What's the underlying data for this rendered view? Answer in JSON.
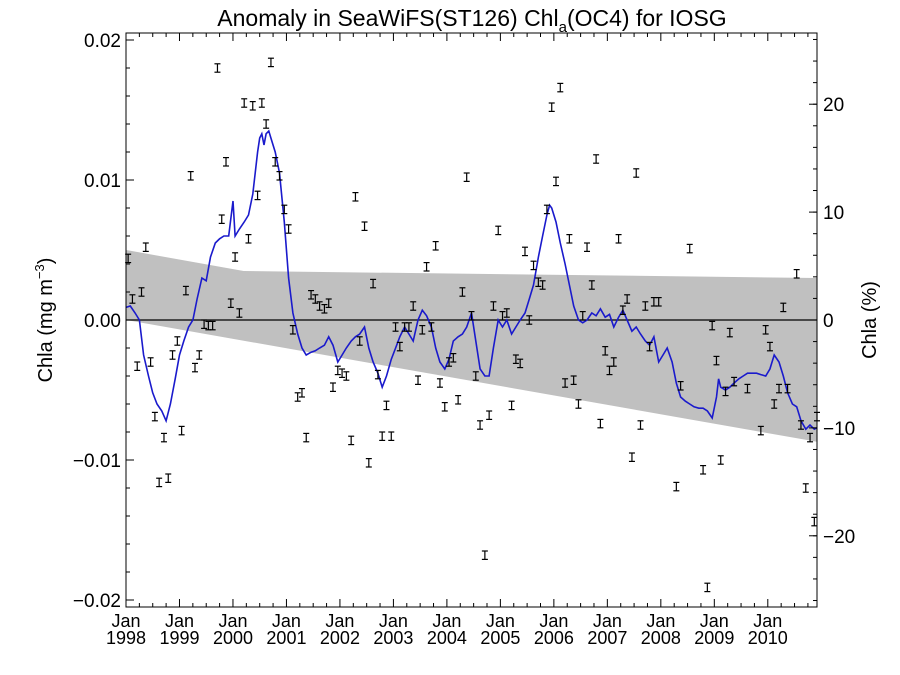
{
  "chart_data": {
    "type": "scatter",
    "title": {
      "prefix": "Anomaly in SeaWiFS(ST126) Chl",
      "sub": "a",
      "suffix": "(OC4) for IOSG"
    },
    "ylabel_left": {
      "text": "Chla (mg m",
      "sup": "−3",
      "close": ")"
    },
    "ylabel_right": "Chla (%)",
    "xlim": [
      1998.0,
      2010.92
    ],
    "ylim": [
      -0.0205,
      0.0205
    ],
    "y2lim": [
      -26.6,
      26.6
    ],
    "yticks": [
      {
        "value": -0.02,
        "label": "−0.02"
      },
      {
        "value": -0.01,
        "label": "−0.01"
      },
      {
        "value": 0.0,
        "label": "0.00"
      },
      {
        "value": 0.01,
        "label": "0.01"
      },
      {
        "value": 0.02,
        "label": "0.02"
      }
    ],
    "y2ticks": [
      {
        "value": -20,
        "label": "−20"
      },
      {
        "value": -10,
        "label": "−10"
      },
      {
        "value": 0,
        "label": "0"
      },
      {
        "value": 10,
        "label": "10"
      },
      {
        "value": 20,
        "label": "20"
      }
    ],
    "xticks": [
      {
        "value": 1998,
        "month": "Jan",
        "year": "1998"
      },
      {
        "value": 1999,
        "month": "Jan",
        "year": "1999"
      },
      {
        "value": 2000,
        "month": "Jan",
        "year": "2000"
      },
      {
        "value": 2001,
        "month": "Jan",
        "year": "2001"
      },
      {
        "value": 2002,
        "month": "Jan",
        "year": "2002"
      },
      {
        "value": 2003,
        "month": "Jan",
        "year": "2003"
      },
      {
        "value": 2004,
        "month": "Jan",
        "year": "2004"
      },
      {
        "value": 2005,
        "month": "Jan",
        "year": "2005"
      },
      {
        "value": 2006,
        "month": "Jan",
        "year": "2006"
      },
      {
        "value": 2007,
        "month": "Jan",
        "year": "2007"
      },
      {
        "value": 2008,
        "month": "Jan",
        "year": "2008"
      },
      {
        "value": 2009,
        "month": "Jan",
        "year": "2009"
      },
      {
        "value": 2010,
        "month": "Jan",
        "year": "2010"
      }
    ],
    "trend_band": {
      "upper": [
        [
          1998.0,
          0.005
        ],
        [
          2000.2,
          0.0035
        ],
        [
          2010.92,
          0.003
        ]
      ],
      "lower": [
        [
          1998.0,
          0.0
        ],
        [
          2010.92,
          -0.0087
        ]
      ]
    },
    "error_bar_halfwidth": 0.0003,
    "monthly_anomalies": [
      [
        1998.04,
        0.0044
      ],
      [
        1998.12,
        0.0015
      ],
      [
        1998.21,
        -0.0033
      ],
      [
        1998.29,
        0.002
      ],
      [
        1998.37,
        0.0052
      ],
      [
        1998.46,
        -0.003
      ],
      [
        1998.54,
        -0.0069
      ],
      [
        1998.62,
        -0.0116
      ],
      [
        1998.71,
        -0.0084
      ],
      [
        1998.79,
        -0.0113
      ],
      [
        1998.87,
        -0.0025
      ],
      [
        1998.96,
        -0.0015
      ],
      [
        1999.04,
        -0.0079
      ],
      [
        1999.12,
        0.0021
      ],
      [
        1999.21,
        0.0103
      ],
      [
        1999.29,
        -0.0034
      ],
      [
        1999.37,
        -0.0025
      ],
      [
        1999.46,
        -0.0003
      ],
      [
        1999.54,
        -0.0004
      ],
      [
        1999.62,
        -0.0004
      ],
      [
        1999.71,
        0.018
      ],
      [
        1999.79,
        0.0072
      ],
      [
        1999.87,
        0.0113
      ],
      [
        1999.96,
        0.0012
      ],
      [
        2000.04,
        0.0045
      ],
      [
        2000.12,
        0.0005
      ],
      [
        2000.21,
        0.0155
      ],
      [
        2000.29,
        0.0058
      ],
      [
        2000.37,
        0.0153
      ],
      [
        2000.46,
        0.0089
      ],
      [
        2000.54,
        0.0155
      ],
      [
        2000.62,
        0.014
      ],
      [
        2000.71,
        0.0184
      ],
      [
        2000.79,
        0.0113
      ],
      [
        2000.87,
        0.0103
      ],
      [
        2000.96,
        0.0079
      ],
      [
        2001.04,
        0.0065
      ],
      [
        2001.12,
        -0.0007
      ],
      [
        2001.21,
        -0.0055
      ],
      [
        2001.29,
        -0.0052
      ],
      [
        2001.37,
        -0.0084
      ],
      [
        2001.46,
        0.0018
      ],
      [
        2001.54,
        0.0015
      ],
      [
        2001.62,
        0.001
      ],
      [
        2001.71,
        0.0008
      ],
      [
        2001.79,
        0.0012
      ],
      [
        2001.87,
        -0.0048
      ],
      [
        2001.96,
        -0.0036
      ],
      [
        2002.04,
        -0.0038
      ],
      [
        2002.12,
        -0.004
      ],
      [
        2002.21,
        -0.0086
      ],
      [
        2002.29,
        0.0088
      ],
      [
        2002.37,
        -0.0015
      ],
      [
        2002.46,
        0.0067
      ],
      [
        2002.54,
        -0.0102
      ],
      [
        2002.62,
        0.0026
      ],
      [
        2002.71,
        -0.0039
      ],
      [
        2002.79,
        -0.0083
      ],
      [
        2002.87,
        -0.0061
      ],
      [
        2002.96,
        -0.0083
      ],
      [
        2003.04,
        -0.0005
      ],
      [
        2003.12,
        -0.0019
      ],
      [
        2003.21,
        -0.0005
      ],
      [
        2003.29,
        -0.0005
      ],
      [
        2003.37,
        0.001
      ],
      [
        2003.46,
        -0.0043
      ],
      [
        2003.54,
        -0.0007
      ],
      [
        2003.62,
        0.0038
      ],
      [
        2003.71,
        -0.0005
      ],
      [
        2003.79,
        0.0053
      ],
      [
        2003.87,
        -0.0045
      ],
      [
        2003.96,
        -0.0062
      ],
      [
        2004.04,
        -0.003
      ],
      [
        2004.12,
        -0.0027
      ],
      [
        2004.21,
        -0.0057
      ],
      [
        2004.29,
        0.002
      ],
      [
        2004.37,
        0.0102
      ],
      [
        2004.46,
        0.0003
      ],
      [
        2004.54,
        -0.004
      ],
      [
        2004.62,
        -0.0075
      ],
      [
        2004.71,
        -0.0168
      ],
      [
        2004.79,
        -0.0068
      ],
      [
        2004.87,
        0.001
      ],
      [
        2004.96,
        0.0064
      ],
      [
        2005.04,
        0.0003
      ],
      [
        2005.12,
        0.0005
      ],
      [
        2005.21,
        -0.0061
      ],
      [
        2005.29,
        -0.0028
      ],
      [
        2005.37,
        -0.0031
      ],
      [
        2005.46,
        0.0049
      ],
      [
        2005.54,
        0.0
      ],
      [
        2005.62,
        0.0039
      ],
      [
        2005.71,
        0.0027
      ],
      [
        2005.79,
        0.0025
      ],
      [
        2005.87,
        0.0079
      ],
      [
        2005.96,
        0.0152
      ],
      [
        2006.04,
        0.0099
      ],
      [
        2006.12,
        0.0166
      ],
      [
        2006.21,
        -0.0045
      ],
      [
        2006.29,
        0.0058
      ],
      [
        2006.37,
        -0.0043
      ],
      [
        2006.46,
        -0.006
      ],
      [
        2006.54,
        0.0003
      ],
      [
        2006.62,
        0.0052
      ],
      [
        2006.71,
        0.0025
      ],
      [
        2006.79,
        0.0115
      ],
      [
        2006.87,
        -0.0074
      ],
      [
        2006.96,
        -0.0022
      ],
      [
        2007.04,
        -0.0036
      ],
      [
        2007.12,
        -0.003
      ],
      [
        2007.21,
        0.0058
      ],
      [
        2007.29,
        0.0007
      ],
      [
        2007.37,
        0.0015
      ],
      [
        2007.46,
        -0.0098
      ],
      [
        2007.54,
        0.0105
      ],
      [
        2007.62,
        -0.0075
      ],
      [
        2007.71,
        0.001
      ],
      [
        2007.79,
        -0.0019
      ],
      [
        2007.87,
        0.0013
      ],
      [
        2007.96,
        0.0013
      ],
      [
        2008.29,
        -0.0119
      ],
      [
        2008.37,
        -0.0047
      ],
      [
        2008.54,
        0.0051
      ],
      [
        2008.79,
        -0.0107
      ],
      [
        2008.87,
        -0.0191
      ],
      [
        2008.96,
        -0.0004
      ],
      [
        2009.04,
        -0.0029
      ],
      [
        2009.12,
        -0.01
      ],
      [
        2009.21,
        -0.0051
      ],
      [
        2009.29,
        -0.0009
      ],
      [
        2009.37,
        -0.0044
      ],
      [
        2009.62,
        -0.0049
      ],
      [
        2009.87,
        -0.0079
      ],
      [
        2009.96,
        -0.0007
      ],
      [
        2010.04,
        -0.0019
      ],
      [
        2010.12,
        -0.006
      ],
      [
        2010.21,
        -0.0049
      ],
      [
        2010.29,
        0.0009
      ],
      [
        2010.37,
        -0.0049
      ],
      [
        2010.54,
        0.0033
      ],
      [
        2010.62,
        -0.0075
      ],
      [
        2010.71,
        -0.012
      ],
      [
        2010.79,
        -0.0084
      ],
      [
        2010.87,
        -0.0144
      ],
      [
        2010.92,
        -0.0069
      ]
    ],
    "smoothed_anomaly": [
      [
        1998.0,
        0.0009
      ],
      [
        1998.08,
        0.001
      ],
      [
        1998.17,
        0.0005
      ],
      [
        1998.25,
        0.0
      ],
      [
        1998.33,
        -0.0025
      ],
      [
        1998.42,
        -0.004
      ],
      [
        1998.5,
        -0.0052
      ],
      [
        1998.58,
        -0.006
      ],
      [
        1998.67,
        -0.0065
      ],
      [
        1998.75,
        -0.0072
      ],
      [
        1998.83,
        -0.006
      ],
      [
        1998.92,
        -0.0042
      ],
      [
        1999.0,
        -0.0025
      ],
      [
        1999.08,
        -0.0015
      ],
      [
        1999.17,
        -0.0005
      ],
      [
        1999.25,
        0.0
      ],
      [
        1999.33,
        0.0015
      ],
      [
        1999.42,
        0.003
      ],
      [
        1999.5,
        0.0028
      ],
      [
        1999.58,
        0.0045
      ],
      [
        1999.67,
        0.0055
      ],
      [
        1999.75,
        0.0058
      ],
      [
        1999.83,
        0.006
      ],
      [
        1999.92,
        0.006
      ],
      [
        2000.0,
        0.0085
      ],
      [
        2000.04,
        0.006
      ],
      [
        2000.12,
        0.0065
      ],
      [
        2000.21,
        0.007
      ],
      [
        2000.29,
        0.0075
      ],
      [
        2000.37,
        0.009
      ],
      [
        2000.46,
        0.012
      ],
      [
        2000.5,
        0.013
      ],
      [
        2000.54,
        0.0133
      ],
      [
        2000.58,
        0.0125
      ],
      [
        2000.62,
        0.0133
      ],
      [
        2000.67,
        0.0135
      ],
      [
        2000.71,
        0.013
      ],
      [
        2000.79,
        0.012
      ],
      [
        2000.87,
        0.0105
      ],
      [
        2000.96,
        0.007
      ],
      [
        2001.04,
        0.003
      ],
      [
        2001.12,
        0.0005
      ],
      [
        2001.21,
        -0.001
      ],
      [
        2001.29,
        -0.002
      ],
      [
        2001.37,
        -0.0025
      ],
      [
        2001.46,
        -0.0023
      ],
      [
        2001.54,
        -0.0022
      ],
      [
        2001.62,
        -0.002
      ],
      [
        2001.71,
        -0.0018
      ],
      [
        2001.79,
        -0.0012
      ],
      [
        2001.87,
        -0.0018
      ],
      [
        2001.96,
        -0.003
      ],
      [
        2002.04,
        -0.0025
      ],
      [
        2002.12,
        -0.002
      ],
      [
        2002.21,
        -0.0015
      ],
      [
        2002.29,
        -0.0012
      ],
      [
        2002.37,
        -0.001
      ],
      [
        2002.46,
        -0.0005
      ],
      [
        2002.54,
        -0.002
      ],
      [
        2002.62,
        -0.003
      ],
      [
        2002.71,
        -0.0038
      ],
      [
        2002.79,
        -0.0048
      ],
      [
        2002.87,
        -0.004
      ],
      [
        2002.96,
        -0.0028
      ],
      [
        2003.04,
        -0.002
      ],
      [
        2003.12,
        -0.0012
      ],
      [
        2003.21,
        -0.0005
      ],
      [
        2003.29,
        -0.001
      ],
      [
        2003.37,
        -0.0015
      ],
      [
        2003.46,
        0.0
      ],
      [
        2003.54,
        0.0007
      ],
      [
        2003.62,
        0.0003
      ],
      [
        2003.71,
        -0.0005
      ],
      [
        2003.79,
        -0.002
      ],
      [
        2003.87,
        -0.003
      ],
      [
        2003.96,
        -0.0035
      ],
      [
        2004.04,
        -0.0028
      ],
      [
        2004.12,
        -0.0015
      ],
      [
        2004.21,
        -0.0012
      ],
      [
        2004.29,
        -0.001
      ],
      [
        2004.37,
        -0.0005
      ],
      [
        2004.46,
        0.0005
      ],
      [
        2004.54,
        -0.0015
      ],
      [
        2004.62,
        -0.0035
      ],
      [
        2004.71,
        -0.004
      ],
      [
        2004.79,
        -0.004
      ],
      [
        2004.87,
        -0.002
      ],
      [
        2004.96,
        0.0
      ],
      [
        2005.04,
        -0.0005
      ],
      [
        2005.12,
        0.0
      ],
      [
        2005.21,
        -0.001
      ],
      [
        2005.29,
        -0.0005
      ],
      [
        2005.37,
        0.0
      ],
      [
        2005.46,
        0.0005
      ],
      [
        2005.54,
        0.0015
      ],
      [
        2005.62,
        0.0025
      ],
      [
        2005.71,
        0.0045
      ],
      [
        2005.79,
        0.006
      ],
      [
        2005.87,
        0.0075
      ],
      [
        2005.92,
        0.0082
      ],
      [
        2005.96,
        0.008
      ],
      [
        2006.04,
        0.007
      ],
      [
        2006.12,
        0.0055
      ],
      [
        2006.21,
        0.004
      ],
      [
        2006.29,
        0.0025
      ],
      [
        2006.37,
        0.001
      ],
      [
        2006.46,
        0.0
      ],
      [
        2006.54,
        -0.0002
      ],
      [
        2006.62,
        0.0
      ],
      [
        2006.71,
        0.0005
      ],
      [
        2006.79,
        0.0003
      ],
      [
        2006.87,
        0.0008
      ],
      [
        2006.96,
        0.0002
      ],
      [
        2007.04,
        0.0004
      ],
      [
        2007.12,
        -0.0005
      ],
      [
        2007.21,
        0.0002
      ],
      [
        2007.29,
        0.0007
      ],
      [
        2007.37,
        0.0
      ],
      [
        2007.46,
        -0.0008
      ],
      [
        2007.54,
        -0.0005
      ],
      [
        2007.62,
        -0.001
      ],
      [
        2007.71,
        -0.0015
      ],
      [
        2007.79,
        -0.0018
      ],
      [
        2007.87,
        -0.0012
      ],
      [
        2007.96,
        -0.003
      ],
      [
        2008.04,
        -0.0025
      ],
      [
        2008.12,
        -0.002
      ],
      [
        2008.21,
        -0.003
      ],
      [
        2008.29,
        -0.0045
      ],
      [
        2008.37,
        -0.0055
      ],
      [
        2008.46,
        -0.0058
      ],
      [
        2008.54,
        -0.006
      ],
      [
        2008.62,
        -0.0062
      ],
      [
        2008.71,
        -0.0063
      ],
      [
        2008.79,
        -0.0063
      ],
      [
        2008.87,
        -0.0065
      ],
      [
        2008.96,
        -0.007
      ],
      [
        2009.04,
        -0.0055
      ],
      [
        2009.08,
        -0.0042
      ],
      [
        2009.12,
        -0.0048
      ],
      [
        2009.21,
        -0.005
      ],
      [
        2009.29,
        -0.0048
      ],
      [
        2009.37,
        -0.0045
      ],
      [
        2009.46,
        -0.0042
      ],
      [
        2009.54,
        -0.004
      ],
      [
        2009.62,
        -0.0038
      ],
      [
        2009.71,
        -0.0038
      ],
      [
        2009.79,
        -0.0038
      ],
      [
        2009.87,
        -0.0039
      ],
      [
        2009.96,
        -0.004
      ],
      [
        2010.04,
        -0.0035
      ],
      [
        2010.12,
        -0.0025
      ],
      [
        2010.21,
        -0.003
      ],
      [
        2010.29,
        -0.004
      ],
      [
        2010.37,
        -0.0052
      ],
      [
        2010.46,
        -0.006
      ],
      [
        2010.54,
        -0.0062
      ],
      [
        2010.62,
        -0.0072
      ],
      [
        2010.71,
        -0.0078
      ],
      [
        2010.79,
        -0.0075
      ],
      [
        2010.87,
        -0.0078
      ],
      [
        2010.92,
        -0.0077
      ]
    ],
    "colors": {
      "band": "#c0c0c0",
      "line": "#1a1acc",
      "points": "#000000",
      "zero_line": "#000000"
    },
    "grid": false
  }
}
